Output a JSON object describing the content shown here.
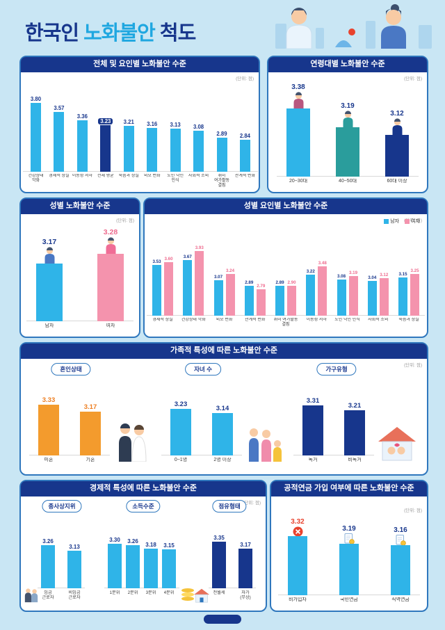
{
  "page": {
    "title_prefix": "한국인 ",
    "title_accent": "노화불안",
    "title_suffix": " 척도",
    "unit": "(단위: 점)"
  },
  "panels": {
    "overall": {
      "title": "전체 및 요인별 노화불안 수준"
    },
    "age": {
      "title": "연령대별 노화불안 수준"
    },
    "gender": {
      "title": "성별 노화불안 수준"
    },
    "gender_factor": {
      "title": "성별 요인별 노화불안 수준"
    },
    "family": {
      "title": "가족적 특성에 따른 노화불안 수준",
      "groups": [
        "혼인상태",
        "자녀 수",
        "가구유형"
      ]
    },
    "economic": {
      "title": "경제적 특성에 따른 노화불안 수준",
      "groups": [
        "종사상지위",
        "소득수준",
        "점유형태"
      ]
    },
    "pension": {
      "title": "공적연금 가입 여부에 따른 노화불안 수준"
    }
  },
  "colors": {
    "cyan": "#2fb4e8",
    "navy": "#17368c",
    "pink": "#f493ad",
    "orange": "#f39b2d",
    "teal": "#2a9d9c",
    "red": "#e8432e",
    "background": "#c9e6f4",
    "panel_border": "#2f77bd"
  },
  "chart_data": [
    {
      "id": "overall-by-factor",
      "type": "bar",
      "title": "전체 및 요인별 노화불안 수준",
      "categories": [
        "건강상태 악화",
        "경제적 상실",
        "이동성 저하",
        "전체 평균",
        "죽음과 상실",
        "외모 변화",
        "노인 낙인 인식",
        "사회적 소외",
        "취미 여가활동 결핍",
        "관계적 변화"
      ],
      "values": [
        3.8,
        3.57,
        3.36,
        3.23,
        3.21,
        3.16,
        3.13,
        3.08,
        2.89,
        2.84
      ],
      "highlight_index": 3,
      "color": "#2fb4e8",
      "highlight_color": "#17368c",
      "value_color": "#17368c",
      "ylim": [
        2.0,
        3.9
      ]
    },
    {
      "id": "by-age",
      "type": "bar",
      "title": "연령대별 노화불안 수준",
      "categories": [
        "20~30대",
        "40~50대",
        "60대 이상"
      ],
      "values": [
        3.38,
        3.19,
        3.12
      ],
      "bar_colors": [
        "#2fb4e8",
        "#2a9d9c",
        "#17368c"
      ],
      "value_color": "#17368c",
      "icons": [
        "person",
        "person",
        "person"
      ],
      "icon_colors": [
        "#b8577f",
        "#2a9d9c",
        "#17368c"
      ],
      "ylim": [
        2.7,
        3.45
      ]
    },
    {
      "id": "by-gender",
      "type": "bar",
      "title": "성별 노화불안 수준",
      "categories": [
        "남자",
        "여자"
      ],
      "values": [
        3.17,
        3.28
      ],
      "bar_colors": [
        "#2fb4e8",
        "#f493ad"
      ],
      "value_colors": [
        "#17368c",
        "#ee6b8e"
      ],
      "icons": [
        "person",
        "person"
      ],
      "icon_colors": [
        "#4a78c4",
        "#f06d96"
      ],
      "ylim": [
        2.5,
        3.4
      ]
    },
    {
      "id": "by-gender-and-factor",
      "type": "bar",
      "title": "성별 요인별 노화불안 수준",
      "legend_position": "top-right",
      "categories": [
        "경제적 상실",
        "건강상태 악화",
        "외모 변화",
        "관계적 변화",
        "취미 여가활동 결핍",
        "이동성 저하",
        "노인 낙인 인식",
        "사회적 소외",
        "죽음과 상실"
      ],
      "series": [
        {
          "name": "남자",
          "color": "#2fb4e8",
          "value_color": "#17368c",
          "values": [
            3.53,
            3.67,
            3.07,
            2.89,
            2.89,
            3.22,
            3.08,
            3.04,
            3.15
          ]
        },
        {
          "name": "여자",
          "color": "#f493ad",
          "value_color": "#ee6b8e",
          "values": [
            3.6,
            3.93,
            3.24,
            2.79,
            2.9,
            3.48,
            3.19,
            3.12,
            3.25
          ]
        }
      ],
      "ylim": [
        2.0,
        4.0
      ]
    },
    {
      "id": "family-marital-status",
      "type": "bar",
      "title": "혼인상태",
      "categories": [
        "미혼",
        "기혼"
      ],
      "values": [
        3.33,
        3.17
      ],
      "color": "#f39b2d",
      "value_color": "#ed7d1f",
      "ylim": [
        2.2,
        3.5
      ]
    },
    {
      "id": "family-number-of-children",
      "type": "bar",
      "title": "자녀 수",
      "categories": [
        "0~1명",
        "2명 이상"
      ],
      "values": [
        3.23,
        3.14
      ],
      "color": "#2fb4e8",
      "value_color": "#17368c",
      "ylim": [
        2.2,
        3.5
      ]
    },
    {
      "id": "family-household-type",
      "type": "bar",
      "title": "가구유형",
      "categories": [
        "독거",
        "비독거"
      ],
      "values": [
        3.31,
        3.21
      ],
      "color": "#17368c",
      "value_color": "#17368c",
      "ylim": [
        2.2,
        3.5
      ]
    },
    {
      "id": "economic-employment-status",
      "type": "bar",
      "title": "종사상지위",
      "categories": [
        "임금 근로자",
        "비임금 근로자"
      ],
      "values": [
        3.26,
        3.13
      ],
      "color": "#2fb4e8",
      "value_color": "#17368c",
      "ylim": [
        2.2,
        3.5
      ]
    },
    {
      "id": "economic-income-level",
      "type": "bar",
      "title": "소득수준",
      "categories": [
        "1분위",
        "2분위",
        "3분위",
        "4분위"
      ],
      "values": [
        3.3,
        3.26,
        3.18,
        3.15
      ],
      "color": "#2fb4e8",
      "value_color": "#17368c",
      "ylim": [
        2.2,
        3.5
      ]
    },
    {
      "id": "economic-housing-tenure",
      "type": "bar",
      "title": "점유형태",
      "categories": [
        "전월세",
        "자가(무상)"
      ],
      "values": [
        3.35,
        3.17
      ],
      "color": "#17368c",
      "value_color": "#17368c",
      "ylim": [
        2.2,
        3.5
      ]
    },
    {
      "id": "public-pension-enrollment",
      "type": "bar",
      "title": "공적연금 가입 여부에 따른 노화불안 수준",
      "categories": [
        "비가입자",
        "국민연금",
        "직역연금"
      ],
      "values": [
        3.32,
        3.19,
        3.16
      ],
      "color": "#2fb4e8",
      "value_colors": [
        "#e8432e",
        "#17368c",
        "#17368c"
      ],
      "icons": [
        "no-badge",
        "doc",
        "doc"
      ],
      "ylim": [
        2.3,
        3.55
      ]
    }
  ]
}
